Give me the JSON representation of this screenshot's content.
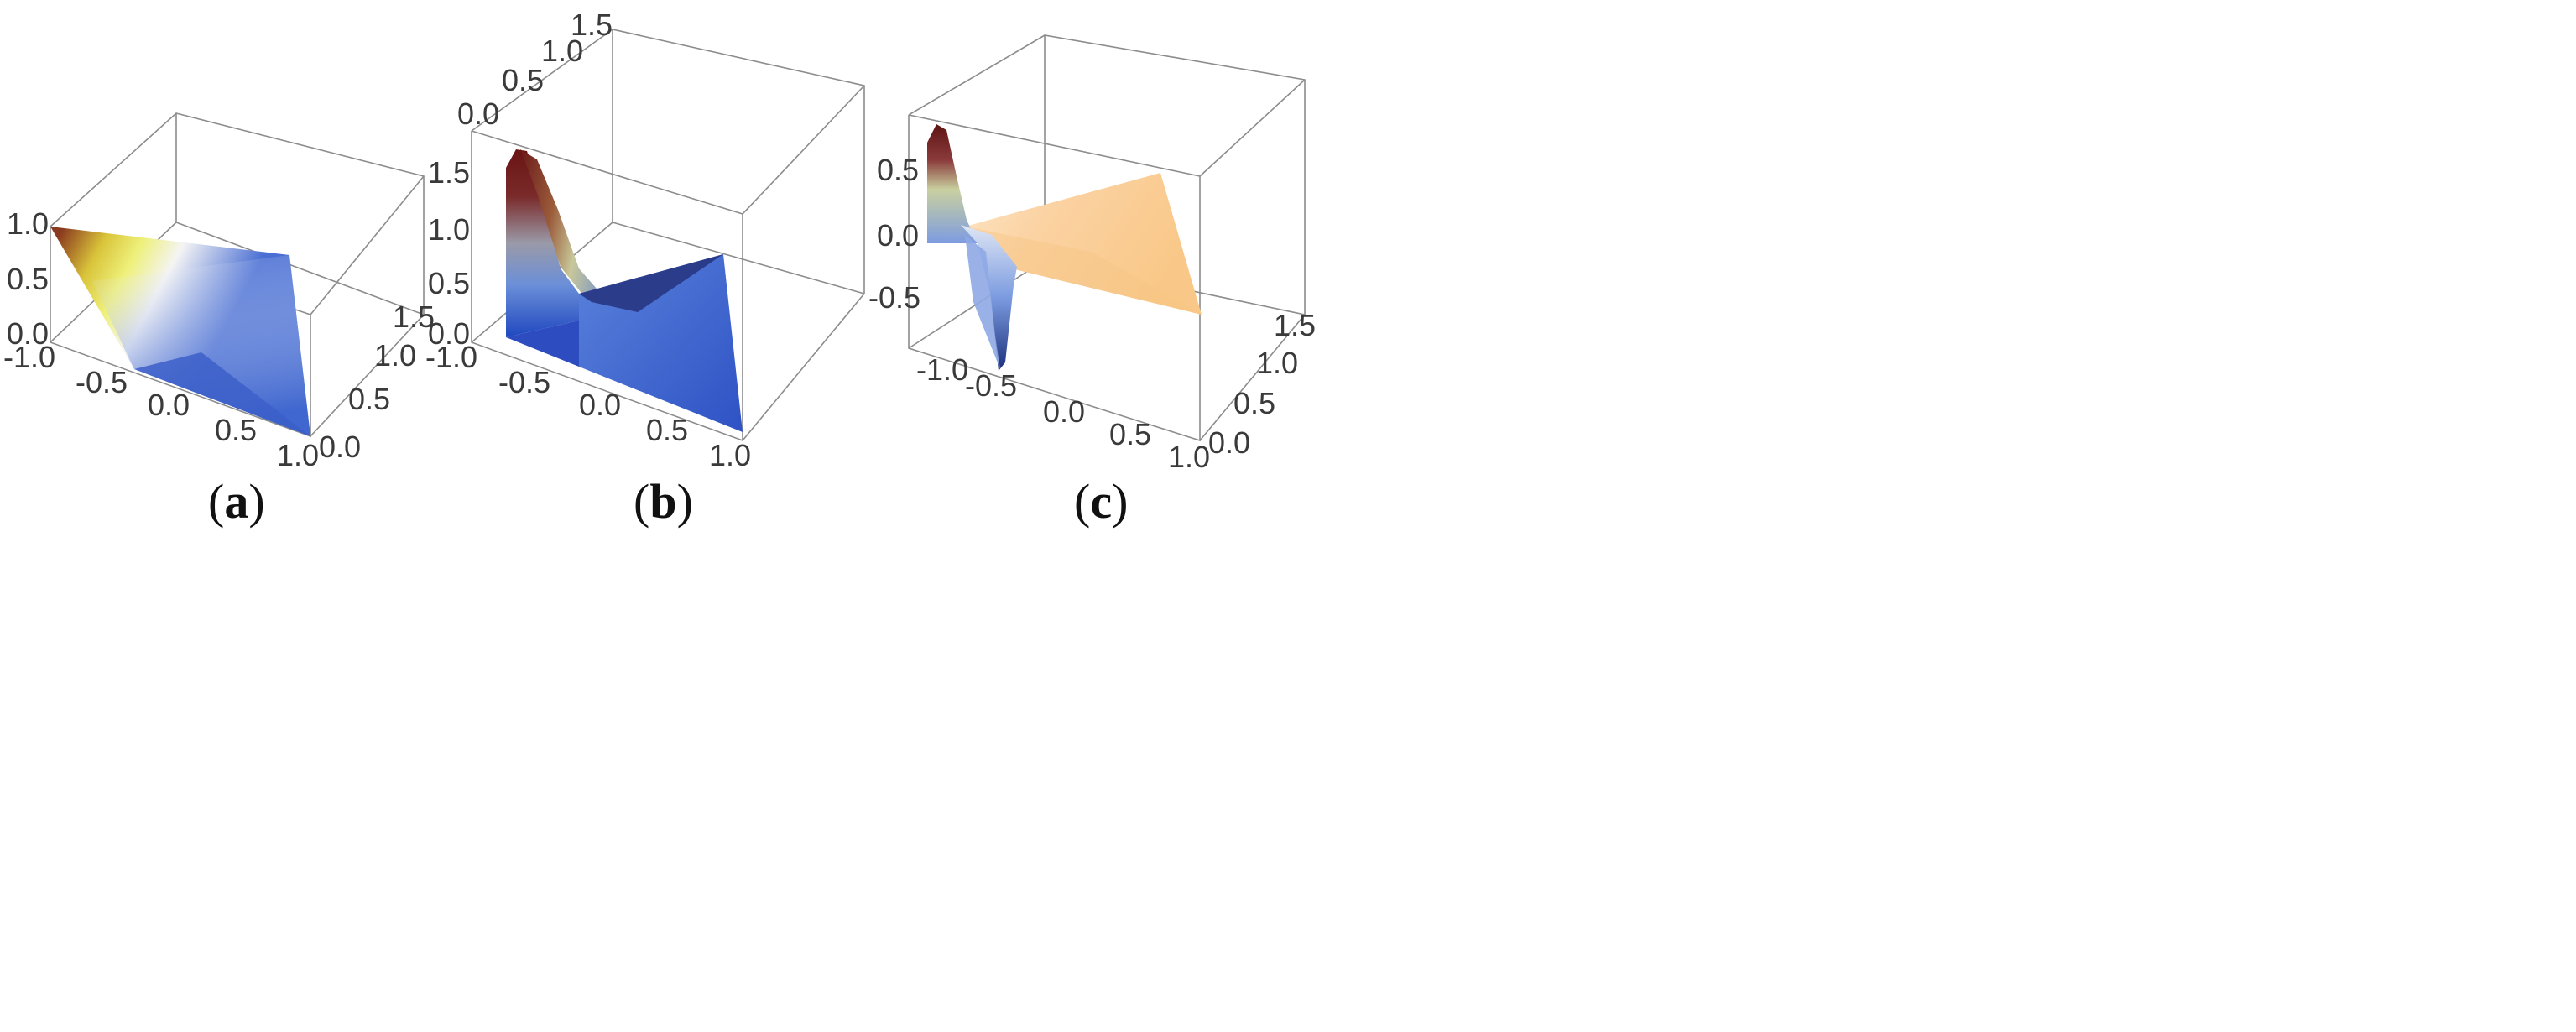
{
  "chart_data": [
    {
      "type": "surface3d",
      "caption_letter": "a",
      "x_ticks": [
        "-1.0",
        "-0.5",
        "0.0",
        "0.5",
        "1.0"
      ],
      "y_ticks": [
        "0.0",
        "0.5",
        "1.0",
        "1.5"
      ],
      "z_ticks": [
        "0.0",
        "0.5",
        "1.0"
      ],
      "x_range": [
        -1.0,
        1.0
      ],
      "y_range": [
        0.0,
        1.7
      ],
      "z_range": [
        0.0,
        1.0
      ],
      "grid": false,
      "colormap": "blue-white-yellow-brown"
    },
    {
      "type": "surface3d",
      "caption_letter": "b",
      "x_ticks": [
        "-1.0",
        "-0.5",
        "0.0",
        "0.5",
        "1.0"
      ],
      "y_ticks": [
        "0.0",
        "0.5",
        "1.0",
        "1.5"
      ],
      "z_ticks": [
        "0.0",
        "0.5",
        "1.0",
        "1.5"
      ],
      "x_range": [
        -1.0,
        1.0
      ],
      "y_range": [
        0.0,
        1.6
      ],
      "z_range": [
        0.0,
        1.7
      ],
      "grid": false,
      "colormap": "blue-white-yellow-brown"
    },
    {
      "type": "surface3d",
      "caption_letter": "c",
      "x_ticks": [
        "-1.0",
        "-0.5",
        "0.0",
        "0.5",
        "1.0"
      ],
      "y_ticks": [
        "0.0",
        "0.5",
        "1.0",
        "1.5"
      ],
      "z_ticks": [
        "-0.5",
        "0.0",
        "0.5"
      ],
      "x_range": [
        -1.0,
        1.0
      ],
      "y_range": [
        0.0,
        1.7
      ],
      "z_range": [
        -0.85,
        0.9
      ],
      "grid": false,
      "colormap": "blue-white-yellow-brown"
    }
  ]
}
